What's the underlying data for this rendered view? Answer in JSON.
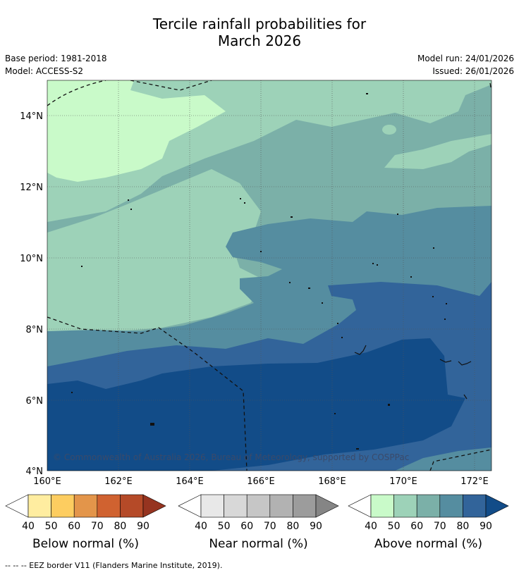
{
  "title_line1": "Tercile rainfall probabilities for",
  "title_line2": "March 2026",
  "base_period": "Base period: 1981-2018",
  "model": "Model: ACCESS-S2",
  "model_run": "Model run: 24/01/2026",
  "issued": "Issued: 26/01/2026",
  "lat_labels": [
    "14°N",
    "12°N",
    "10°N",
    "8°N",
    "6°N",
    "4°N"
  ],
  "lon_labels": [
    "160°E",
    "162°E",
    "164°E",
    "166°E",
    "168°E",
    "170°E",
    "172°E"
  ],
  "copyright": "© Commonwealth of Australia 2026, Bureau of Meteorology, supported by COSPPac",
  "colorbars": [
    {
      "title": "Below normal (%)",
      "ticks": [
        "40",
        "50",
        "60",
        "70",
        "80",
        "90"
      ],
      "colors": [
        "#ffffff",
        "#ffeda0",
        "#fdcd60",
        "#e3954a",
        "#d06230",
        "#b54a28",
        "#963420"
      ]
    },
    {
      "title": "Near normal (%)",
      "ticks": [
        "40",
        "50",
        "60",
        "70",
        "80",
        "90"
      ],
      "colors": [
        "#ffffff",
        "#e8e8e8",
        "#d8d8d8",
        "#c6c6c6",
        "#b2b2b2",
        "#9c9c9c",
        "#858585"
      ]
    },
    {
      "title": "Above normal (%)",
      "ticks": [
        "40",
        "50",
        "60",
        "70",
        "80",
        "90"
      ],
      "colors": [
        "#ffffff",
        "#c9fac9",
        "#9dd2b8",
        "#7bb0a8",
        "#558da0",
        "#32649a",
        "#124c88"
      ]
    }
  ],
  "footnote": "--  --  -- EEZ border V11 (Flanders Marine Institute, 2019)."
}
